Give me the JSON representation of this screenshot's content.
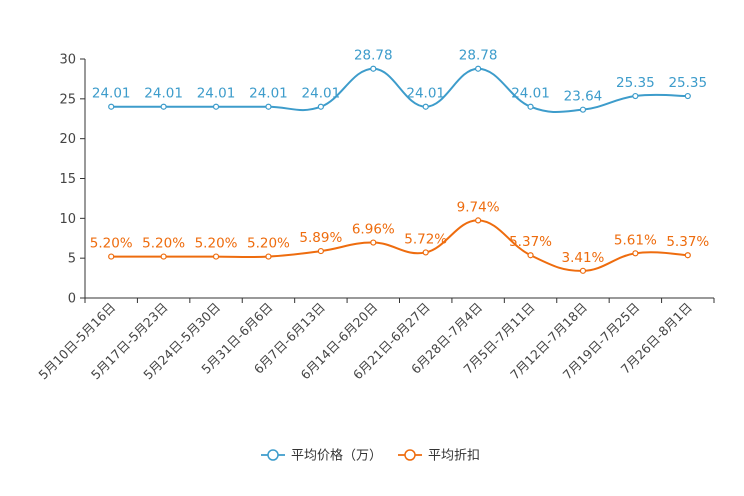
{
  "chart_data": {
    "type": "line",
    "categories": [
      "5月10日-5月16日",
      "5月17日-5月23日",
      "5月24日-5月30日",
      "5月31日-6月6日",
      "6月7日-6月13日",
      "6月14日-6月20日",
      "6月21日-6月27日",
      "6月28日-7月4日",
      "7月5日-7月11日",
      "7月12日-7月18日",
      "7月19日-7月25日",
      "7月26日-8月1日"
    ],
    "ylim": [
      0,
      30
    ],
    "yticks": [
      "0",
      "5",
      "10",
      "15",
      "20",
      "25",
      "30"
    ],
    "series": [
      {
        "name": "平均价格（万）",
        "color": "#3d9ccb",
        "values": [
          24.01,
          24.01,
          24.01,
          24.01,
          24.01,
          28.78,
          24.01,
          28.78,
          24.01,
          23.64,
          25.35,
          25.35
        ],
        "labels": [
          "24.01",
          "24.01",
          "24.01",
          "24.01",
          "24.01",
          "28.78",
          "24.01",
          "28.78",
          "24.01",
          "23.64",
          "25.35",
          "25.35"
        ]
      },
      {
        "name": "平均折扣",
        "color": "#ee6c0e",
        "values": [
          5.2,
          5.2,
          5.2,
          5.2,
          5.89,
          6.96,
          5.72,
          9.74,
          5.37,
          3.41,
          5.61,
          5.37
        ],
        "labels": [
          "5.20%",
          "5.20%",
          "5.20%",
          "5.20%",
          "5.89%",
          "6.96%",
          "5.72%",
          "9.74%",
          "5.37%",
          "3.41%",
          "5.61%",
          "5.37%"
        ]
      }
    ]
  }
}
